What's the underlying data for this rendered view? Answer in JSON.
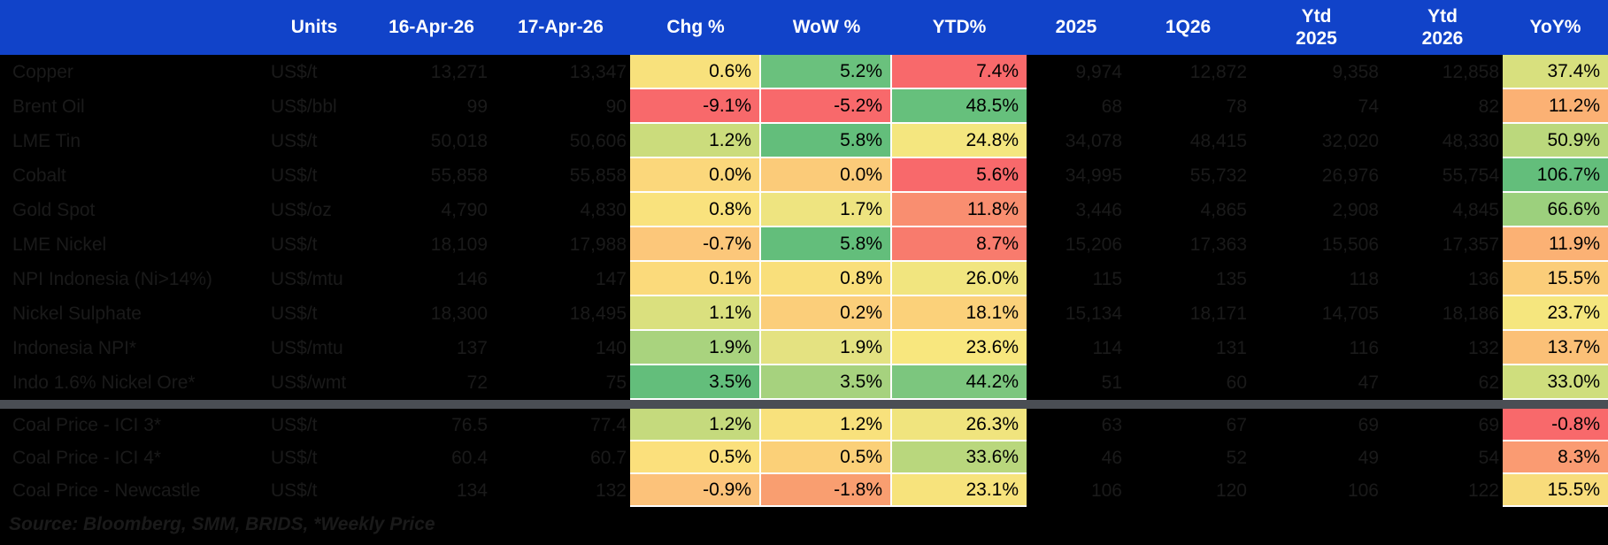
{
  "colors": {
    "header_bg": "#1143C9",
    "header_text": "#FFFFFF",
    "body_bg": "#000000",
    "dim_text": "#1A1A1A",
    "separator": "#4A4E54",
    "heat_grid": "#FDFDFD"
  },
  "table": {
    "columns": [
      {
        "id": "name",
        "label": ""
      },
      {
        "id": "units",
        "label": "Units"
      },
      {
        "id": "apr16",
        "label": "16-Apr-26"
      },
      {
        "id": "apr17",
        "label": "17-Apr-26"
      },
      {
        "id": "chg",
        "label": "Chg %"
      },
      {
        "id": "wow",
        "label": "WoW %"
      },
      {
        "id": "ytd",
        "label": "YTD%"
      },
      {
        "id": "y2025",
        "label": "2025"
      },
      {
        "id": "q1_26",
        "label": "1Q26"
      },
      {
        "id": "ytd2025",
        "label": "Ytd",
        "sub": "2025"
      },
      {
        "id": "ytd2026",
        "label": "Ytd",
        "sub": "2026"
      },
      {
        "id": "yoy",
        "label": "YoY%"
      }
    ],
    "sections": [
      {
        "name": "metals",
        "rows": [
          {
            "name": "Copper",
            "units": "US$/t",
            "apr16": "13,271",
            "apr17": "13,347",
            "chg": {
              "v": "0.6%",
              "bg": "#F8E17C"
            },
            "wow": {
              "v": "5.2%",
              "bg": "#6AC17D"
            },
            "ytd": {
              "v": "7.4%",
              "bg": "#F8696B"
            },
            "y2025": "9,974",
            "q1_26": "12,872",
            "ytd2025": "9,358",
            "ytd2026": "12,858",
            "yoy": {
              "v": "37.4%",
              "bg": "#D8E07E"
            }
          },
          {
            "name": "Brent Oil",
            "units": "US$/bbl",
            "apr16": "99",
            "apr17": "90",
            "chg": {
              "v": "-9.1%",
              "bg": "#F8696B"
            },
            "wow": {
              "v": "-5.2%",
              "bg": "#F8696B"
            },
            "ytd": {
              "v": "48.5%",
              "bg": "#66C07C"
            },
            "y2025": "68",
            "q1_26": "78",
            "ytd2025": "74",
            "ytd2026": "82",
            "yoy": {
              "v": "11.2%",
              "bg": "#FBB174"
            }
          },
          {
            "name": "LME Tin",
            "units": "US$/t",
            "apr16": "50,018",
            "apr17": "50,606",
            "chg": {
              "v": "1.2%",
              "bg": "#CBDC7C"
            },
            "wow": {
              "v": "5.8%",
              "bg": "#63BE7B"
            },
            "ytd": {
              "v": "24.8%",
              "bg": "#F4E67F"
            },
            "y2025": "34,078",
            "q1_26": "48,415",
            "ytd2025": "32,020",
            "ytd2026": "48,330",
            "yoy": {
              "v": "50.9%",
              "bg": "#BBD87C"
            }
          },
          {
            "name": "Cobalt",
            "units": "US$/t",
            "apr16": "55,858",
            "apr17": "55,858",
            "chg": {
              "v": "0.0%",
              "bg": "#FBD77B"
            },
            "wow": {
              "v": "0.0%",
              "bg": "#FBCB79"
            },
            "ytd": {
              "v": "5.6%",
              "bg": "#F8696B"
            },
            "y2025": "34,995",
            "q1_26": "55,732",
            "ytd2025": "26,976",
            "ytd2026": "55,754",
            "yoy": {
              "v": "106.7%",
              "bg": "#63BE7B"
            }
          },
          {
            "name": "Gold Spot",
            "units": "US$/oz",
            "apr16": "4,790",
            "apr17": "4,830",
            "chg": {
              "v": "0.8%",
              "bg": "#F9E27D"
            },
            "wow": {
              "v": "1.7%",
              "bg": "#EEE480"
            },
            "ytd": {
              "v": "11.8%",
              "bg": "#F98E70"
            },
            "y2025": "3,446",
            "q1_26": "4,865",
            "ytd2025": "2,908",
            "ytd2026": "4,845",
            "yoy": {
              "v": "66.6%",
              "bg": "#9CD07D"
            }
          },
          {
            "name": "LME Nickel",
            "units": "US$/t",
            "apr16": "18,109",
            "apr17": "17,988",
            "chg": {
              "v": "-0.7%",
              "bg": "#FCC77A"
            },
            "wow": {
              "v": "5.8%",
              "bg": "#63BE7B"
            },
            "ytd": {
              "v": "8.7%",
              "bg": "#F87B6D"
            },
            "y2025": "15,206",
            "q1_26": "17,363",
            "ytd2025": "15,506",
            "ytd2026": "17,357",
            "yoy": {
              "v": "11.9%",
              "bg": "#FBB174"
            }
          },
          {
            "name": "NPI Indonesia (Ni>14%)",
            "units": "US$/mtu",
            "apr16": "146",
            "apr17": "147",
            "chg": {
              "v": "0.1%",
              "bg": "#FBDA7B"
            },
            "wow": {
              "v": "0.8%",
              "bg": "#F9DF7B"
            },
            "ytd": {
              "v": "26.0%",
              "bg": "#F1E57F"
            },
            "y2025": "115",
            "q1_26": "135",
            "ytd2025": "118",
            "ytd2026": "136",
            "yoy": {
              "v": "15.5%",
              "bg": "#FBCD79"
            }
          },
          {
            "name": "Nickel Sulphate",
            "units": "US$/t",
            "apr16": "18,300",
            "apr17": "18,495",
            "chg": {
              "v": "1.1%",
              "bg": "#DAE07E"
            },
            "wow": {
              "v": "0.2%",
              "bg": "#FBCE7A"
            },
            "ytd": {
              "v": "18.1%",
              "bg": "#FBD17A"
            },
            "y2025": "15,134",
            "q1_26": "18,171",
            "ytd2025": "14,705",
            "ytd2026": "18,186",
            "yoy": {
              "v": "23.7%",
              "bg": "#F5E67E"
            }
          },
          {
            "name": "Indonesia NPI*",
            "units": "US$/mtu",
            "apr16": "137",
            "apr17": "140",
            "chg": {
              "v": "1.9%",
              "bg": "#A9D37E"
            },
            "wow": {
              "v": "1.9%",
              "bg": "#E4E281"
            },
            "ytd": {
              "v": "23.6%",
              "bg": "#F8E77E"
            },
            "y2025": "114",
            "q1_26": "131",
            "ytd2025": "116",
            "ytd2026": "132",
            "yoy": {
              "v": "13.7%",
              "bg": "#FBC077"
            }
          },
          {
            "name": "Indo 1.6% Nickel Ore*",
            "units": "US$/wmt",
            "apr16": "72",
            "apr17": "75",
            "chg": {
              "v": "3.5%",
              "bg": "#63BE7B"
            },
            "wow": {
              "v": "3.5%",
              "bg": "#A6D27E"
            },
            "ytd": {
              "v": "44.2%",
              "bg": "#7CC67E"
            },
            "y2025": "51",
            "q1_26": "60",
            "ytd2025": "47",
            "ytd2026": "62",
            "yoy": {
              "v": "33.0%",
              "bg": "#CFDE7D"
            }
          }
        ]
      },
      {
        "name": "coal",
        "rows": [
          {
            "name": "Coal Price - ICI 3*",
            "units": "US$/t",
            "apr16": "76.5",
            "apr17": "77.4",
            "chg": {
              "v": "1.2%",
              "bg": "#C5DA7D"
            },
            "wow": {
              "v": "1.2%",
              "bg": "#F8E17C"
            },
            "ytd": {
              "v": "26.3%",
              "bg": "#F0E47E"
            },
            "y2025": "63",
            "q1_26": "67",
            "ytd2025": "69",
            "ytd2026": "69",
            "yoy": {
              "v": "-0.8%",
              "bg": "#F8696B"
            }
          },
          {
            "name": "Coal Price - ICI 4*",
            "units": "US$/t",
            "apr16": "60.4",
            "apr17": "60.7",
            "chg": {
              "v": "0.5%",
              "bg": "#FBE07C"
            },
            "wow": {
              "v": "0.5%",
              "bg": "#FBD078"
            },
            "ytd": {
              "v": "33.6%",
              "bg": "#B9D77D"
            },
            "y2025": "46",
            "q1_26": "52",
            "ytd2025": "49",
            "ytd2026": "54",
            "yoy": {
              "v": "8.3%",
              "bg": "#FA9B72"
            }
          },
          {
            "name": "Coal Price - Newcastle",
            "units": "US$/t",
            "apr16": "134",
            "apr17": "132",
            "chg": {
              "v": "-0.9%",
              "bg": "#FCC27A"
            },
            "wow": {
              "v": "-1.8%",
              "bg": "#F99E70"
            },
            "ytd": {
              "v": "23.1%",
              "bg": "#F7E37C"
            },
            "y2025": "106",
            "q1_26": "120",
            "ytd2025": "106",
            "ytd2026": "122",
            "yoy": {
              "v": "15.5%",
              "bg": "#F8DC7B"
            }
          }
        ]
      }
    ]
  },
  "footer": {
    "source_note": "Source: Bloomberg, SMM, BRIDS, *Weekly Price"
  },
  "chart_data": {
    "type": "table",
    "title": "Commodity price monitor heatmap table",
    "columns": [
      "",
      "Units",
      "16-Apr-26",
      "17-Apr-26",
      "Chg %",
      "WoW %",
      "YTD%",
      "2025",
      "1Q26",
      "Ytd 2025",
      "Ytd 2026",
      "YoY%"
    ],
    "rows": [
      [
        "Copper",
        "US$/t",
        "13,271",
        "13,347",
        "0.6%",
        "5.2%",
        "7.4%",
        "9,974",
        "12,872",
        "9,358",
        "12,858",
        "37.4%"
      ],
      [
        "Brent Oil",
        "US$/bbl",
        "99",
        "90",
        "-9.1%",
        "-5.2%",
        "48.5%",
        "68",
        "78",
        "74",
        "82",
        "11.2%"
      ],
      [
        "LME Tin",
        "US$/t",
        "50,018",
        "50,606",
        "1.2%",
        "5.8%",
        "24.8%",
        "34,078",
        "48,415",
        "32,020",
        "48,330",
        "50.9%"
      ],
      [
        "Cobalt",
        "US$/t",
        "55,858",
        "55,858",
        "0.0%",
        "0.0%",
        "5.6%",
        "34,995",
        "55,732",
        "26,976",
        "55,754",
        "106.7%"
      ],
      [
        "Gold Spot",
        "US$/oz",
        "4,790",
        "4,830",
        "0.8%",
        "1.7%",
        "11.8%",
        "3,446",
        "4,865",
        "2,908",
        "4,845",
        "66.6%"
      ],
      [
        "LME Nickel",
        "US$/t",
        "18,109",
        "17,988",
        "-0.7%",
        "5.8%",
        "8.7%",
        "15,206",
        "17,363",
        "15,506",
        "17,357",
        "11.9%"
      ],
      [
        "NPI Indonesia (Ni>14%)",
        "US$/mtu",
        "146",
        "147",
        "0.1%",
        "0.8%",
        "26.0%",
        "115",
        "135",
        "118",
        "136",
        "15.5%"
      ],
      [
        "Nickel Sulphate",
        "US$/t",
        "18,300",
        "18,495",
        "1.1%",
        "0.2%",
        "18.1%",
        "15,134",
        "18,171",
        "14,705",
        "18,186",
        "23.7%"
      ],
      [
        "Indonesia NPI*",
        "US$/mtu",
        "137",
        "140",
        "1.9%",
        "1.9%",
        "23.6%",
        "114",
        "131",
        "116",
        "132",
        "13.7%"
      ],
      [
        "Indo 1.6% Nickel Ore*",
        "US$/wmt",
        "72",
        "75",
        "3.5%",
        "3.5%",
        "44.2%",
        "51",
        "60",
        "47",
        "62",
        "33.0%"
      ],
      [
        "Coal Price - ICI 3*",
        "US$/t",
        "76.5",
        "77.4",
        "1.2%",
        "1.2%",
        "26.3%",
        "63",
        "67",
        "69",
        "69",
        "-0.8%"
      ],
      [
        "Coal Price - ICI 4*",
        "US$/t",
        "60.4",
        "60.7",
        "0.5%",
        "0.5%",
        "33.6%",
        "46",
        "52",
        "49",
        "54",
        "8.3%"
      ],
      [
        "Coal Price - Newcastle",
        "US$/t",
        "134",
        "132",
        "-0.9%",
        "-1.8%",
        "23.1%",
        "106",
        "120",
        "106",
        "122",
        "15.5%"
      ]
    ],
    "heatmap_columns": [
      "Chg %",
      "WoW %",
      "YTD%",
      "YoY%"
    ],
    "heatmap_scale": {
      "low": "#F8696B",
      "mid": "#FFEB84",
      "high": "#63BE7B"
    },
    "separator_after_row": "Indo 1.6% Nickel Ore*",
    "footnote": "Source: Bloomberg, SMM, BRIDS, *Weekly Price"
  }
}
